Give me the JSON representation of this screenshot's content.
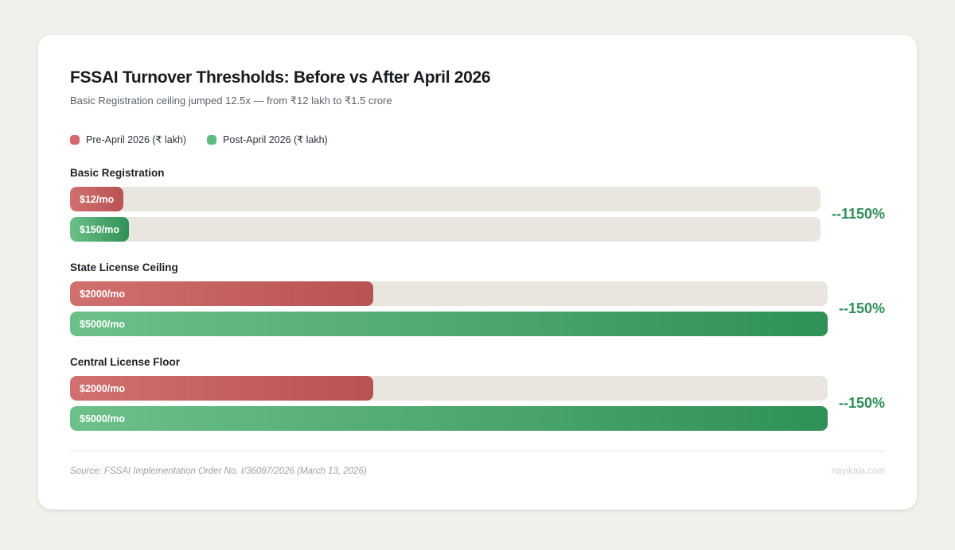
{
  "header": {
    "title": "FSSAI Turnover Thresholds: Before vs After April 2026",
    "subtitle": "Basic Registration ceiling jumped 12.5x — from ₹12 lakh to ₹1.5 crore"
  },
  "legend": {
    "pre": {
      "label": "Pre-April 2026 (₹ lakh)",
      "color": "#d4696c"
    },
    "post": {
      "label": "Post-April 2026 (₹ lakh)",
      "color": "#5abd84"
    }
  },
  "chart_data": {
    "type": "bar",
    "orientation": "horizontal",
    "title": "FSSAI Turnover Thresholds: Before vs After April 2026",
    "subtitle": "Basic Registration ceiling jumped 12.5x — from ₹12 lakh to ₹1.5 crore",
    "series_names": [
      "Pre-April 2026 (₹ lakh)",
      "Post-April 2026 (₹ lakh)"
    ],
    "scale_max": 5000,
    "grid": false,
    "legend_position": "top-left",
    "groups": [
      {
        "category": "Basic Registration",
        "pre": {
          "value": 12,
          "label": "$12/mo"
        },
        "post": {
          "value": 150,
          "label": "$150/mo"
        },
        "change": "--1150%"
      },
      {
        "category": "State License Ceiling",
        "pre": {
          "value": 2000,
          "label": "$2000/mo"
        },
        "post": {
          "value": 5000,
          "label": "$5000/mo"
        },
        "change": "--150%"
      },
      {
        "category": "Central License Floor",
        "pre": {
          "value": 2000,
          "label": "$2000/mo"
        },
        "post": {
          "value": 5000,
          "label": "$5000/mo"
        },
        "change": "--150%"
      }
    ],
    "colors": {
      "track": "#e9e5df",
      "pre_gradient": [
        "#d0706f",
        "#b85353"
      ],
      "post_gradient": [
        "#6dc089",
        "#2f9156"
      ],
      "change_text": "#2e8e58"
    }
  },
  "footer": {
    "source": "Source: FSSAI Implementation Order No. I/36087/2026 (March 13, 2026)",
    "watermark": "nayikala.com"
  }
}
